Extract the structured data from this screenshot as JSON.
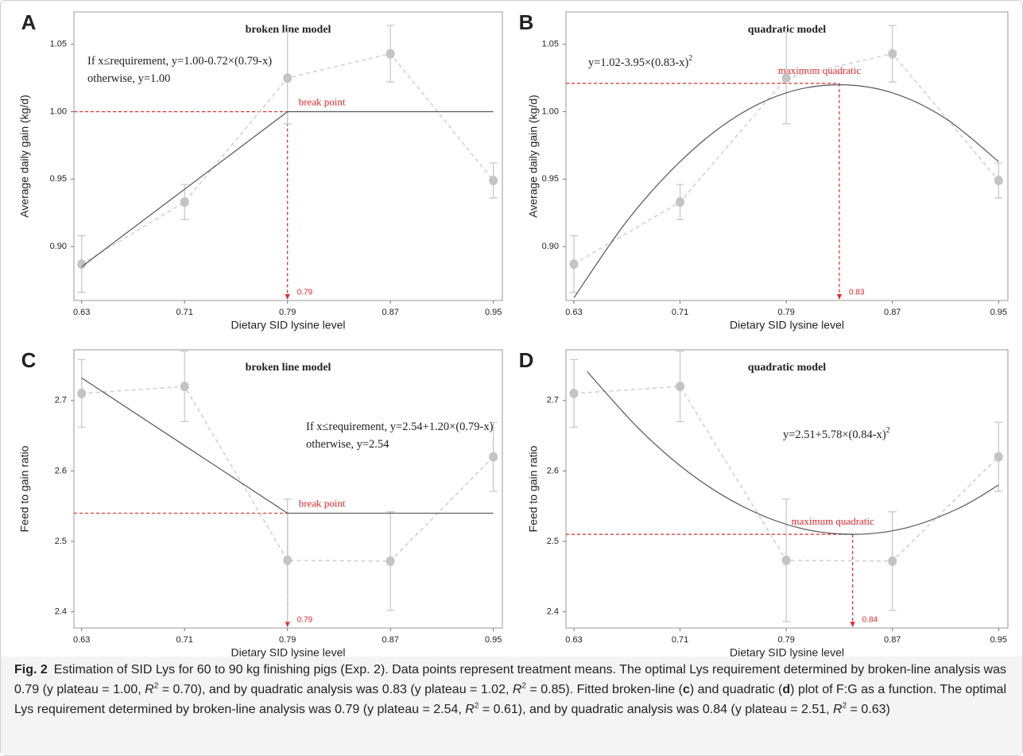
{
  "chart_data": [
    {
      "type": "line",
      "label": "A",
      "title": "broken line model",
      "x_label": "Dietary SID lysine level",
      "y_label": "Average daily gain (kg/d)",
      "x": [
        0.63,
        0.71,
        0.79,
        0.87,
        0.95
      ],
      "xlim": [
        0.624,
        0.957
      ],
      "xticks": [
        0.63,
        0.71,
        0.79,
        0.87,
        0.95
      ],
      "ylim": [
        0.86,
        1.074
      ],
      "yticks": [
        {
          "value": 0.9,
          "label": "0.90"
        },
        {
          "value": 0.95,
          "label": "0.95"
        },
        {
          "value": 1,
          "label": "1.00"
        },
        {
          "value": 1.05,
          "label": "1.05"
        }
      ],
      "series": [
        {
          "color": "#c4c4c4",
          "values": [
            0.887,
            0.933,
            1.025,
            1.043,
            0.949
          ],
          "errors": [
            0.021,
            0.013,
            0.034,
            0.021,
            0.013
          ]
        }
      ],
      "fit": {
        "model": "broken-line",
        "color": "#555555",
        "x": [
          0.63,
          0.79,
          0.95
        ],
        "values": [
          0.885,
          1.0,
          1.0
        ]
      },
      "optimum": {
        "x": 0.79,
        "y": 1.0,
        "label": "break point",
        "color": "#e8262a"
      },
      "equation": [
        "If x≤requirement, y=1.00-0.72×(0.79-x)",
        "otherwise, y=1.00"
      ]
    },
    {
      "type": "line",
      "label": "B",
      "title": "quadratic model",
      "x_label": "Dietary SID lysine level",
      "y_label": "Average daily gain (kg/d)",
      "x": [
        0.63,
        0.71,
        0.79,
        0.87,
        0.95
      ],
      "xlim": [
        0.624,
        0.957
      ],
      "xticks": [
        0.63,
        0.71,
        0.79,
        0.87,
        0.95
      ],
      "ylim": [
        0.86,
        1.074
      ],
      "yticks": [
        {
          "value": 0.9,
          "label": "0.90"
        },
        {
          "value": 0.95,
          "label": "0.95"
        },
        {
          "value": 1,
          "label": "1.00"
        },
        {
          "value": 1.05,
          "label": "1.05"
        }
      ],
      "series": [
        {
          "color": "#c4c4c4",
          "values": [
            0.887,
            0.933,
            1.025,
            1.043,
            0.949
          ],
          "errors": [
            0.021,
            0.013,
            0.034,
            0.021,
            0.013
          ]
        }
      ],
      "fit": {
        "model": "quadratic",
        "color": "#555555",
        "x": [
          0.63,
          0.67,
          0.71,
          0.75,
          0.79,
          0.83,
          0.87,
          0.91,
          0.95
        ],
        "values": [
          0.862,
          0.919,
          0.963,
          0.995,
          1.014,
          1.02,
          1.014,
          0.995,
          0.963
        ]
      },
      "optimum": {
        "x": 0.83,
        "y": 1.021,
        "label": "maximum quadratic",
        "color": "#e8262a"
      },
      "equation": [
        "y=1.02-3.95×(0.83-x)"
      ],
      "equation_sup": "2"
    },
    {
      "type": "line",
      "label": "C",
      "title": "broken line model",
      "x_label": "Dietary SID lysine level",
      "y_label": "Feed to gain ratio",
      "x": [
        0.63,
        0.71,
        0.79,
        0.87,
        0.95
      ],
      "xlim": [
        0.624,
        0.957
      ],
      "xticks": [
        0.63,
        0.71,
        0.79,
        0.87,
        0.95
      ],
      "ylim": [
        2.377,
        2.772
      ],
      "yticks": [
        2.4,
        2.5,
        2.6,
        2.7
      ],
      "series": [
        {
          "color": "#c4c4c4",
          "values": [
            2.71,
            2.72,
            2.473,
            2.472,
            2.62
          ],
          "errors": [
            0.048,
            0.05,
            0.087,
            0.07,
            0.049
          ]
        }
      ],
      "fit": {
        "model": "broken-line",
        "color": "#555555",
        "x": [
          0.63,
          0.79,
          0.95
        ],
        "values": [
          2.732,
          2.54,
          2.54
        ]
      },
      "optimum": {
        "x": 0.79,
        "y": 2.54,
        "label": "break point",
        "color": "#e8262a"
      },
      "equation": [
        "If x≤requirement, y=2.54+1.20×(0.79-x)",
        "otherwise, y=2.54"
      ]
    },
    {
      "type": "line",
      "label": "D",
      "title": "quadratic model",
      "x_label": "Dietary SID lysine level",
      "y_label": "Feed to gain ratio",
      "x": [
        0.63,
        0.71,
        0.79,
        0.87,
        0.95
      ],
      "xlim": [
        0.624,
        0.957
      ],
      "xticks": [
        0.63,
        0.71,
        0.79,
        0.87,
        0.95
      ],
      "ylim": [
        2.377,
        2.772
      ],
      "yticks": [
        2.4,
        2.5,
        2.6,
        2.7
      ],
      "series": [
        {
          "color": "#c4c4c4",
          "values": [
            2.71,
            2.72,
            2.473,
            2.472,
            2.62
          ],
          "errors": [
            0.048,
            0.05,
            0.087,
            0.07,
            0.049
          ]
        }
      ],
      "fit": {
        "model": "quadratic",
        "color": "#555555",
        "x": [
          0.64,
          0.68,
          0.72,
          0.76,
          0.8,
          0.84,
          0.88,
          0.92,
          0.95
        ],
        "values": [
          2.741,
          2.658,
          2.593,
          2.547,
          2.519,
          2.51,
          2.519,
          2.547,
          2.58
        ]
      },
      "optimum": {
        "x": 0.84,
        "y": 2.51,
        "label": "maximum quadratic",
        "color": "#e8262a"
      },
      "equation": [
        "y=2.51+5.78×(0.84-x)"
      ],
      "equation_sup": "2"
    }
  ],
  "caption": {
    "label": "Fig. 2",
    "runs": [
      {
        "text": "Estimation of SID Lys for 60 to 90 kg finishing pigs (Exp. 2). Data points represent treatment means. The optimal Lys requirement determined by broken-line analysis was 0.79 (y plateau = 1.00, "
      },
      {
        "text": "R",
        "style": "italic"
      },
      {
        "text": "2",
        "style": "sup"
      },
      {
        "text": " = 0.70), and by quadratic analysis was 0.83 (y plateau = 1.02, "
      },
      {
        "text": "R",
        "style": "italic"
      },
      {
        "text": "2",
        "style": "sup"
      },
      {
        "text": " = 0.85). Fitted broken-line ("
      },
      {
        "text": "c",
        "style": "bold"
      },
      {
        "text": ") and quadratic ("
      },
      {
        "text": "d",
        "style": "bold"
      },
      {
        "text": ") plot of F:G as a function. The optimal Lys requirement determined by broken-line analysis was 0.79 (y plateau = 2.54, "
      },
      {
        "text": "R",
        "style": "italic"
      },
      {
        "text": "2",
        "style": "sup"
      },
      {
        "text": " = 0.61), and by quadratic analysis was 0.84 (y plateau = 2.51, "
      },
      {
        "text": "R",
        "style": "italic"
      },
      {
        "text": "2",
        "style": "sup"
      },
      {
        "text": " = 0.63)"
      }
    ]
  }
}
